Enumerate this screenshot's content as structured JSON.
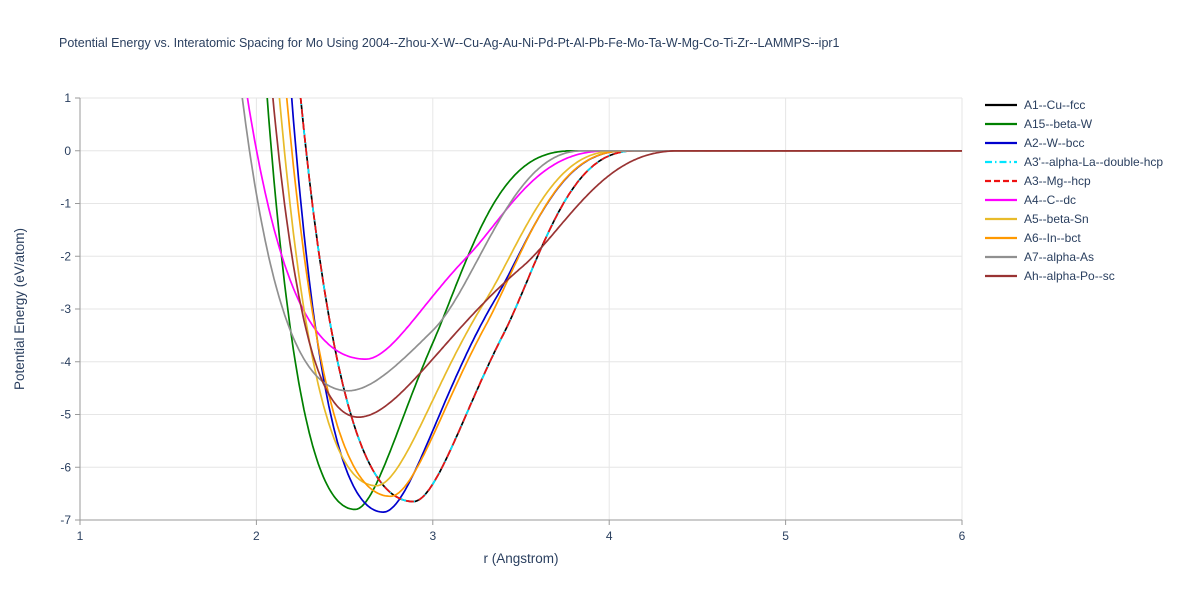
{
  "page": {
    "title": "Potential Energy vs. Interatomic Spacing for Mo Using 2004--Zhou-X-W--Cu-Ag-Au-Ni-Pd-Pt-Al-Pb-Fe-Mo-Ta-W-Mg-Co-Ti-Zr--LAMMPS--ipr1"
  },
  "chart_data": {
    "type": "line",
    "title": "Potential Energy vs. Interatomic Spacing for Mo Using 2004--Zhou-X-W--Cu-Ag-Au-Ni-Pd-Pt-Al-Pb-Fe-Mo-Ta-W-Mg-Co-Ti-Zr--LAMMPS--ipr1",
    "xlabel": "r (Angstrom)",
    "ylabel": "Potential Energy (eV/atom)",
    "xlim": [
      1,
      6
    ],
    "ylim": [
      -7,
      1
    ],
    "xticks": [
      1,
      2,
      3,
      4,
      5,
      6
    ],
    "yticks": [
      -7,
      -6,
      -5,
      -4,
      -3,
      -2,
      -1,
      0,
      1
    ],
    "grid": true,
    "legend_position": "right-outside",
    "text_color": "#2a3f5f",
    "grid_color": "#e6e6e6",
    "axis_color": "#9a9a9a",
    "series": [
      {
        "name": "A1--Cu--fcc",
        "color": "#000000",
        "dash": "solid",
        "zero_crossing_r": 2.28,
        "well_min": {
          "r": 2.89,
          "E": -6.65
        },
        "flat_zero_from_r": 4.15,
        "model": {
          "D": 6.65,
          "r0": 2.89,
          "a_rep": 1.14,
          "a_att": 2.3,
          "c_on": 3.4,
          "c_off": 4.15
        }
      },
      {
        "name": "A15--beta-W",
        "color": "#008000",
        "dash": "solid",
        "zero_crossing_r": 2.1,
        "well_min": {
          "r": 2.56,
          "E": -6.8
        },
        "flat_zero_from_r": 3.8,
        "model": {
          "D": 6.8,
          "r0": 2.56,
          "a_rep": 1.46,
          "a_att": 2.6,
          "c_on": 3.0,
          "c_off": 3.8
        }
      },
      {
        "name": "A2--W--bcc",
        "color": "#0000cd",
        "dash": "solid",
        "zero_crossing_r": 2.23,
        "well_min": {
          "r": 2.72,
          "E": -6.85
        },
        "flat_zero_from_r": 4.1,
        "model": {
          "D": 6.85,
          "r0": 2.72,
          "a_rep": 1.4,
          "a_att": 2.3,
          "c_on": 3.35,
          "c_off": 4.1
        }
      },
      {
        "name": "A3'--alpha-La--double-hcp",
        "color": "#00e5ff",
        "dash": "dashdot",
        "zero_crossing_r": 2.28,
        "well_min": {
          "r": 2.89,
          "E": -6.65
        },
        "flat_zero_from_r": 4.15,
        "model": {
          "D": 6.65,
          "r0": 2.89,
          "a_rep": 1.14,
          "a_att": 2.3,
          "c_on": 3.4,
          "c_off": 4.15
        }
      },
      {
        "name": "A3--Mg--hcp",
        "color": "#ee1111",
        "dash": "dash",
        "zero_crossing_r": 2.28,
        "well_min": {
          "r": 2.89,
          "E": -6.65
        },
        "flat_zero_from_r": 4.15,
        "model": {
          "D": 6.65,
          "r0": 2.89,
          "a_rep": 1.14,
          "a_att": 2.3,
          "c_on": 3.4,
          "c_off": 4.15
        }
      },
      {
        "name": "A4--C--dc",
        "color": "#ff00ff",
        "dash": "solid",
        "zero_crossing_r": 2.0,
        "well_min": {
          "r": 2.62,
          "E": -3.95
        },
        "flat_zero_from_r": 4.0,
        "model": {
          "D": 3.95,
          "r0": 2.62,
          "a_rep": 1.12,
          "a_att": 2.1,
          "c_on": 3.2,
          "c_off": 4.0
        }
      },
      {
        "name": "A5--beta-Sn",
        "color": "#e8bb2a",
        "dash": "solid",
        "zero_crossing_r": 2.16,
        "well_min": {
          "r": 2.68,
          "E": -6.35
        },
        "flat_zero_from_r": 4.05,
        "model": {
          "D": 6.35,
          "r0": 2.68,
          "a_rep": 1.33,
          "a_att": 2.2,
          "c_on": 3.3,
          "c_off": 4.05
        }
      },
      {
        "name": "A6--In--bct",
        "color": "#ff9900",
        "dash": "solid",
        "zero_crossing_r": 2.2,
        "well_min": {
          "r": 2.76,
          "E": -6.55
        },
        "flat_zero_from_r": 4.1,
        "model": {
          "D": 6.55,
          "r0": 2.76,
          "a_rep": 1.24,
          "a_att": 2.25,
          "c_on": 3.3,
          "c_off": 4.1
        }
      },
      {
        "name": "A7--alpha-As",
        "color": "#909090",
        "dash": "solid",
        "zero_crossing_r": 1.96,
        "well_min": {
          "r": 2.52,
          "E": -4.55
        },
        "flat_zero_from_r": 3.85,
        "model": {
          "D": 4.55,
          "r0": 2.52,
          "a_rep": 1.24,
          "a_att": 1.45,
          "c_on": 3.0,
          "c_off": 3.85
        }
      },
      {
        "name": "Ah--alpha-Po--sc",
        "color": "#993333",
        "dash": "solid",
        "zero_crossing_r": 2.12,
        "well_min": {
          "r": 2.58,
          "E": -5.05
        },
        "flat_zero_from_r": 4.4,
        "model": {
          "D": 5.05,
          "r0": 2.58,
          "a_rep": 1.52,
          "a_att": 1.5,
          "c_on": 3.5,
          "c_off": 4.4
        }
      }
    ]
  }
}
